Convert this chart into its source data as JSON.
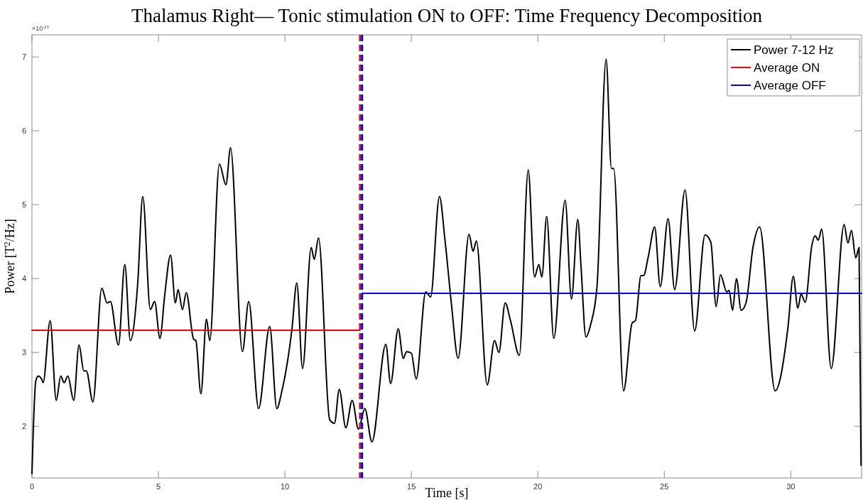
{
  "chart_data": {
    "type": "line",
    "title": "Thalamus Right— Tonic stimulation ON to OFF: Time Frequency Decomposition",
    "xlabel": "Time [s]",
    "ylabel": "Power [T$^{2}$/Hz]",
    "annotations": [
      "×10$^{-23}$"
    ],
    "xlim": [
      0,
      32.8
    ],
    "xticks": [
      0,
      5,
      10,
      15,
      20,
      25,
      30
    ],
    "ylim": [
      1.3,
      7.3
    ],
    "yticks": [
      2,
      3,
      4,
      5,
      6,
      7
    ],
    "grid": false,
    "legend": "top right",
    "line_style": "solid",
    "series": [
      {
        "name": "Power 7-12 Hz",
        "color": "#000000",
        "x": [
          0,
          0.15,
          0.25,
          0.38,
          0.44,
          0.72,
          0.96,
          1.14,
          1.27,
          1.42,
          1.65,
          1.86,
          2.05,
          2.15,
          2.41,
          2.76,
          2.97,
          3.1,
          3.42,
          3.67,
          3.89,
          4.18,
          4.38,
          4.68,
          4.85,
          5.06,
          5.25,
          5.48,
          5.67,
          5.78,
          5.95,
          6.1,
          6.39,
          6.48,
          6.68,
          6.9,
          7.03,
          7.41,
          7.67,
          7.85,
          8.32,
          8.57,
          8.96,
          9.4,
          9.68,
          9.87,
          10.28,
          10.47,
          10.7,
          11.04,
          11.16,
          11.33,
          11.77,
          11.96,
          12.15,
          12.41,
          12.66,
          12.91,
          13.16,
          13.44,
          13.99,
          14.18,
          14.48,
          14.68,
          14.81,
          15,
          15.19,
          15.57,
          15.76,
          16.11,
          16.33,
          16.58,
          16.85,
          17.28,
          17.44,
          17.57,
          18,
          18.29,
          18.46,
          18.71,
          18.92,
          19.27,
          19.62,
          19.87,
          20.04,
          20.16,
          20.35,
          20.63,
          21.08,
          21.33,
          21.58,
          21.71,
          21.9,
          22.09,
          22.34,
          22.7,
          22.91,
          23,
          23.39,
          23.73,
          23.86,
          24.08,
          24.18,
          24.37,
          24.62,
          24.84,
          25.15,
          25.41,
          25.82,
          26.2,
          26.61,
          26.84,
          27.05,
          27.22,
          27.47,
          27.56,
          27.7,
          27.85,
          28.04,
          28.23,
          28.51,
          28.77,
          29.38,
          29.89,
          30.1,
          30.28,
          30.41,
          30.57,
          30.84,
          30.96,
          31.09,
          31.22,
          31.6,
          32.11,
          32.26,
          32.4,
          32.57,
          32.7,
          32.78
        ],
        "values": [
          1.36,
          2.61,
          2.68,
          2.64,
          2.59,
          3.43,
          2.35,
          2.68,
          2.59,
          2.68,
          2.35,
          3.1,
          2.75,
          2.75,
          2.33,
          3.87,
          3.67,
          3.69,
          3.1,
          4.19,
          3.16,
          3.93,
          5.11,
          3.58,
          3.69,
          3.19,
          3.78,
          4.32,
          3.67,
          3.85,
          3.58,
          3.81,
          3.18,
          3.16,
          2.44,
          3.45,
          3.16,
          5.55,
          5.27,
          5.77,
          3.01,
          3.69,
          2.24,
          3.35,
          2.24,
          2.46,
          3.32,
          3.94,
          2.78,
          4.42,
          4.26,
          4.55,
          2.09,
          2.04,
          2.5,
          1.98,
          2.35,
          1.96,
          2.24,
          1.79,
          3.11,
          2.58,
          3.32,
          2.92,
          3.01,
          2.99,
          2.64,
          3.82,
          3.75,
          5.11,
          4.52,
          3.67,
          2.92,
          4.6,
          4.37,
          4.51,
          2.56,
          3.16,
          3,
          3.67,
          3.43,
          2.96,
          5.47,
          4.02,
          4.19,
          4.02,
          4.84,
          3.19,
          5.06,
          3.72,
          4.8,
          4.15,
          3.21,
          3.38,
          3.89,
          6.97,
          5.49,
          5.49,
          2.48,
          3.4,
          3.43,
          4.04,
          4.04,
          4.3,
          4.7,
          3.89,
          4.81,
          3.85,
          5.2,
          3.29,
          4.59,
          4.49,
          3.62,
          4.05,
          3.82,
          3.84,
          3.57,
          4,
          3.57,
          3.67,
          4.43,
          4.7,
          2.48,
          3.34,
          4.03,
          3.6,
          3.79,
          3.68,
          4.46,
          4.58,
          4.52,
          4.67,
          2.78,
          4.73,
          4.48,
          4.65,
          4.28,
          4.42,
          1.47
        ]
      },
      {
        "name": "Average ON",
        "color": "#ff0000",
        "x": [
          0,
          12.97
        ],
        "values": [
          3.3,
          3.3
        ]
      },
      {
        "name": "Average OFF",
        "color": "#0000ff",
        "x": [
          13.05,
          32.8
        ],
        "values": [
          3.8,
          3.8
        ]
      }
    ],
    "ref_lines": [
      {
        "axis": "x",
        "value": 12.97,
        "color": "#ff0000",
        "line_style": "dashed"
      },
      {
        "axis": "x",
        "value": 13.05,
        "color": "#0000ff",
        "line_style": "dashed"
      }
    ]
  }
}
